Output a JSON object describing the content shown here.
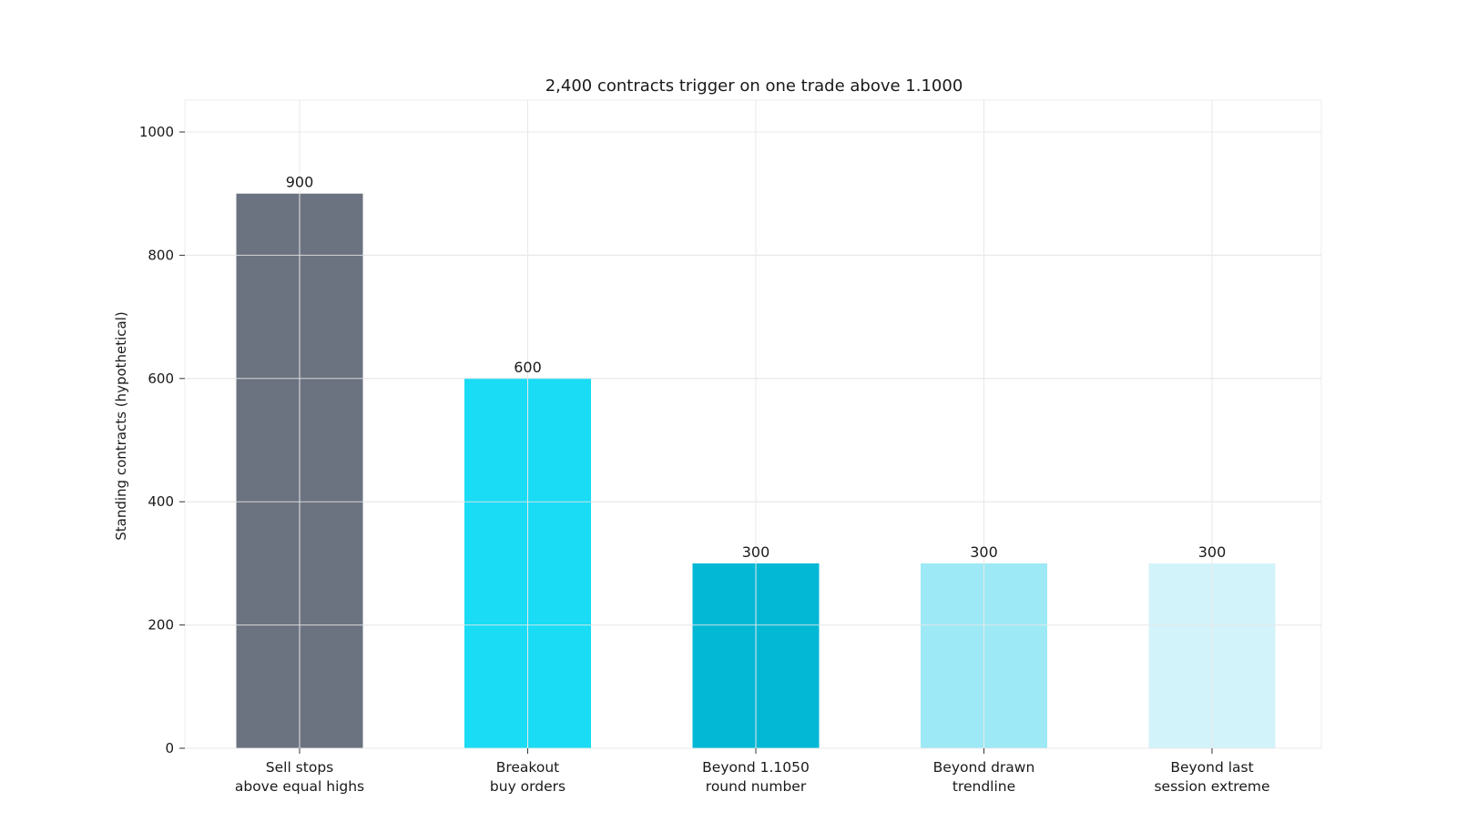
{
  "chart_data": {
    "type": "bar",
    "title": "2,400 contracts trigger on one trade above 1.1000",
    "xlabel": "",
    "ylabel": "Standing contracts (hypothetical)",
    "ylim": [
      0,
      1050
    ],
    "yticks": [
      0,
      200,
      400,
      600,
      800,
      1000
    ],
    "grid": true,
    "categories": [
      [
        "Sell stops",
        "above equal highs"
      ],
      [
        "Breakout",
        "buy orders"
      ],
      [
        "Beyond 1.1050",
        "round number"
      ],
      [
        "Beyond drawn",
        "trendline"
      ],
      [
        "Beyond last",
        "session extreme"
      ]
    ],
    "values": [
      900,
      600,
      300,
      300,
      300
    ],
    "value_labels": [
      "900",
      "600",
      "300",
      "300",
      "300"
    ],
    "colors": [
      "#6b7280",
      "#1adcf5",
      "#02b8d4",
      "#9de9f5",
      "#d3f3fa"
    ],
    "grid_color": "#e8e8e8"
  }
}
